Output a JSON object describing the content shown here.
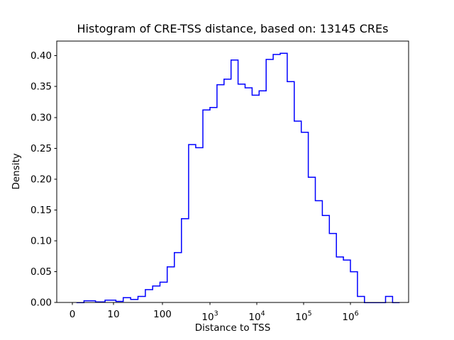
{
  "title": "Histogram of CRE-TSS distance, based on: 13145 CREs",
  "chart_data": {
    "type": "line",
    "subtype": "step-histogram",
    "title": "Histogram of CRE-TSS distance, based on: 13145 CREs",
    "xlabel": "Distance to TSS",
    "ylabel": "Density",
    "x_scale": "symlog",
    "grid": false,
    "legend": null,
    "ylim": [
      0,
      0.4237
    ],
    "y_ticks": [
      "0.00",
      "0.05",
      "0.10",
      "0.15",
      "0.20",
      "0.25",
      "0.30",
      "0.35",
      "0.40"
    ],
    "x_ticks": [
      {
        "value": 0,
        "base": "0",
        "exp": ""
      },
      {
        "value": 10,
        "base": "10",
        "exp": ""
      },
      {
        "value": 100,
        "base": "100",
        "exp": ""
      },
      {
        "value": 1000,
        "base": "10",
        "exp": "3"
      },
      {
        "value": 10000,
        "base": "10",
        "exp": "4"
      },
      {
        "value": 100000,
        "base": "10",
        "exp": "5"
      },
      {
        "value": 1000000,
        "base": "10",
        "exp": "6"
      }
    ],
    "colors": {
      "line": "#0000ff",
      "spine": "#000000",
      "text": "#000000"
    },
    "bin_edges": [
      1,
      1.41,
      2.0,
      2.82,
      3.98,
      5.62,
      7.94,
      11.2,
      15.8,
      22.4,
      31.6,
      44.7,
      63.1,
      89.1,
      126,
      178,
      251,
      355,
      501,
      708,
      1000,
      1413,
      1995,
      2818,
      3981,
      5623,
      7943,
      11220,
      15849,
      22387,
      31623,
      44668,
      63096,
      89125,
      125893,
      177828,
      251189,
      354813,
      501187,
      707946,
      1000000,
      1412538,
      1995262,
      2818383,
      3981072,
      5623413,
      7943282,
      11220185
    ],
    "densities": [
      0,
      0,
      0,
      0.003,
      0.003,
      0.001,
      0.004,
      0.002,
      0.008,
      0.005,
      0.01,
      0.021,
      0.027,
      0.033,
      0.058,
      0.081,
      0.136,
      0.256,
      0.251,
      0.312,
      0.316,
      0.353,
      0.362,
      0.393,
      0.354,
      0.348,
      0.336,
      0.343,
      0.394,
      0.402,
      0.404,
      0.358,
      0.294,
      0.276,
      0.203,
      0.165,
      0.141,
      0.112,
      0.074,
      0.069,
      0.05,
      0.01,
      0,
      0,
      0,
      0.01,
      0
    ]
  }
}
